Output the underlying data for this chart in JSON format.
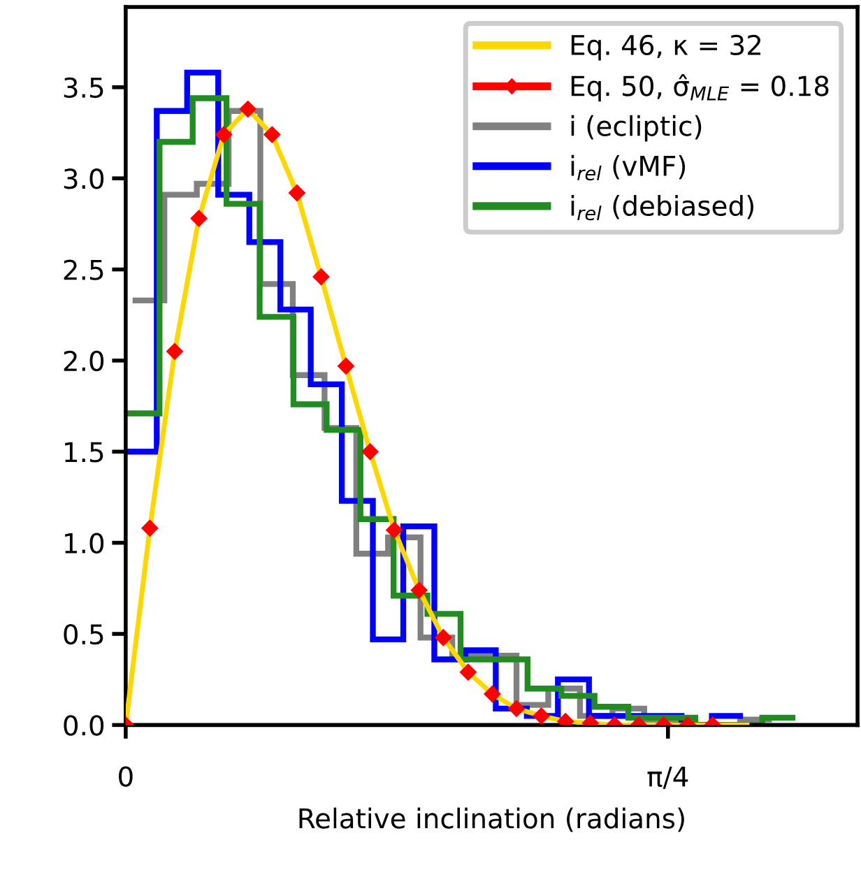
{
  "chart_data": {
    "type": "histogram",
    "xlabel": "Relative inclination (radians)",
    "xlim": [
      0,
      1.06
    ],
    "ylim": [
      0,
      3.94
    ],
    "xticks": [
      {
        "value": 0,
        "label": "0"
      },
      {
        "value": 0.7854,
        "label": "π/4"
      }
    ],
    "yticks": [
      {
        "value": 0,
        "label": "0.0"
      },
      0.5,
      {
        "value": 1,
        "label": "1.0"
      },
      1.5,
      {
        "value": 2,
        "label": "2.0"
      },
      2.5,
      {
        "value": 3,
        "label": "3.0"
      },
      3.5
    ],
    "legend": "top right",
    "grid": false,
    "series": [
      {
        "name": "Eq. 46, κ = 32",
        "type": "line",
        "color": "#ffd700",
        "x": [
          0,
          0.035,
          0.071,
          0.106,
          0.142,
          0.177,
          0.212,
          0.248,
          0.283,
          0.319,
          0.354,
          0.389,
          0.425,
          0.46,
          0.496,
          0.531,
          0.566,
          0.602,
          0.637,
          0.673,
          0.708,
          0.743,
          0.779,
          0.814,
          0.85,
          0.9
        ],
        "values": [
          0,
          1.08,
          2.05,
          2.78,
          3.24,
          3.38,
          3.24,
          2.92,
          2.46,
          1.97,
          1.5,
          1.07,
          0.74,
          0.48,
          0.29,
          0.17,
          0.09,
          0.05,
          0.02,
          0.01,
          0,
          0,
          0,
          0,
          0,
          0
        ]
      },
      {
        "name": "Eq. 50, σ̂$_{MLE}$ = 0.18",
        "type": "scatter",
        "marker": "diamond",
        "color": "#ff0000",
        "x": [
          0,
          0.035,
          0.071,
          0.106,
          0.142,
          0.177,
          0.212,
          0.248,
          0.283,
          0.319,
          0.354,
          0.389,
          0.425,
          0.46,
          0.496,
          0.531,
          0.566,
          0.602,
          0.637,
          0.673,
          0.708,
          0.743,
          0.779,
          0.814,
          0.85
        ],
        "values": [
          0,
          1.08,
          2.05,
          2.78,
          3.24,
          3.38,
          3.24,
          2.92,
          2.46,
          1.97,
          1.5,
          1.07,
          0.74,
          0.48,
          0.29,
          0.17,
          0.09,
          0.05,
          0.02,
          0.01,
          0,
          0,
          0,
          0,
          0
        ]
      },
      {
        "name": "i (ecliptic)",
        "color": "#808080",
        "bins": [
          0.01,
          0.056,
          0.103,
          0.149,
          0.195,
          0.242,
          0.288,
          0.334,
          0.38,
          0.427,
          0.473,
          0.519,
          0.566,
          0.612,
          0.658,
          0.705,
          0.751,
          0.797,
          0.843,
          0.89,
          0.936
        ],
        "values": [
          2.33,
          2.91,
          2.97,
          3.37,
          2.42,
          1.92,
          1.63,
          0.94,
          1.03,
          0.48,
          0.38,
          0.38,
          0.11,
          0.2,
          0.05,
          0.09,
          0.03,
          0,
          0,
          0.03
        ]
      },
      {
        "name": "i$_{rel}$ (vMF)",
        "color": "#0000ff",
        "bins": [
          0,
          0.045,
          0.089,
          0.134,
          0.179,
          0.224,
          0.268,
          0.313,
          0.358,
          0.402,
          0.447,
          0.492,
          0.536,
          0.581,
          0.626,
          0.671,
          0.715,
          0.76,
          0.805,
          0.849,
          0.894
        ],
        "values": [
          1.5,
          3.37,
          3.58,
          2.91,
          2.65,
          2.28,
          1.87,
          1.23,
          0.47,
          1.09,
          0.36,
          0.41,
          0.09,
          0.05,
          0.25,
          0.05,
          0.05,
          0.05,
          0,
          0.05
        ]
      },
      {
        "name": "i$_{rel}$ (debiased)",
        "color": "#228b22",
        "bins": [
          0,
          0.049,
          0.097,
          0.146,
          0.194,
          0.243,
          0.291,
          0.34,
          0.388,
          0.437,
          0.485,
          0.534,
          0.582,
          0.631,
          0.679,
          0.728,
          0.776,
          0.825,
          0.873,
          0.922,
          0.97
        ],
        "values": [
          1.71,
          3.2,
          3.44,
          2.86,
          2.24,
          1.76,
          1.62,
          1.13,
          0.71,
          0.61,
          0.36,
          0.36,
          0.2,
          0.16,
          0.1,
          0.04,
          0.04,
          0,
          0,
          0.04
        ]
      }
    ]
  }
}
